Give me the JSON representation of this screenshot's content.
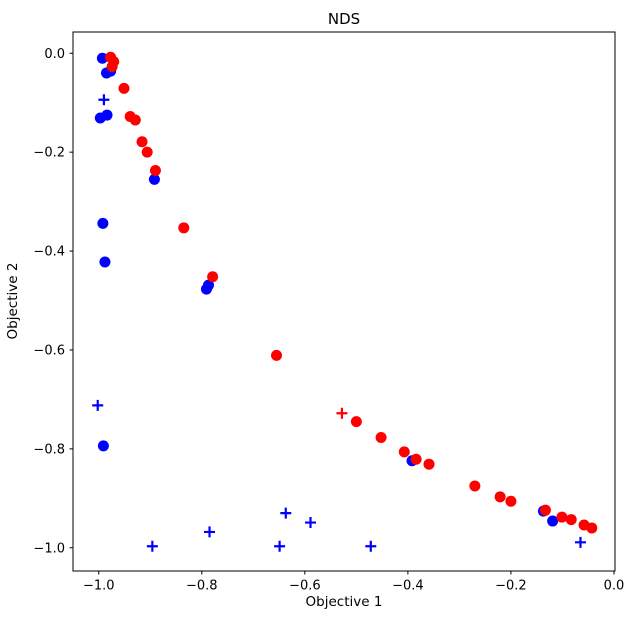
{
  "figure": {
    "title": "NDS",
    "xlabel": "Objective 1",
    "ylabel": "Objective 2"
  },
  "chart_data": {
    "type": "scatter",
    "title": "NDS",
    "xlabel": "Objective 1",
    "ylabel": "Objective 2",
    "xlim": [
      -1.05,
      0.002
    ],
    "ylim": [
      -1.047,
      0.043
    ],
    "xticks": [
      -1.0,
      -0.8,
      -0.6,
      -0.4,
      -0.2,
      0.0
    ],
    "xtick_labels": [
      "−1.0",
      "−0.8",
      "−0.6",
      "−0.4",
      "−0.2",
      "0.0"
    ],
    "yticks": [
      0.0,
      -0.2,
      -0.4,
      -0.6,
      -0.8,
      -1.0
    ],
    "ytick_labels": [
      "0.0",
      "−0.2",
      "−0.4",
      "−0.6",
      "−0.8",
      "−1.0"
    ],
    "grid": false,
    "legend": "none",
    "colors": {
      "red": "#ff0000",
      "blue": "#0000ff"
    },
    "series": [
      {
        "name": "blue-circles",
        "marker": "circle",
        "color": "#0000ff",
        "points": [
          [
            -0.993,
            -0.01
          ],
          [
            -0.985,
            -0.04
          ],
          [
            -0.977,
            -0.036
          ],
          [
            -0.997,
            -0.131
          ],
          [
            -0.984,
            -0.125
          ],
          [
            -0.892,
            -0.255
          ],
          [
            -0.992,
            -0.344
          ],
          [
            -0.988,
            -0.422
          ],
          [
            -0.787,
            -0.469
          ],
          [
            -0.791,
            -0.477
          ],
          [
            -0.991,
            -0.794
          ],
          [
            -0.392,
            -0.824
          ],
          [
            -0.137,
            -0.926
          ],
          [
            -0.119,
            -0.946
          ]
        ]
      },
      {
        "name": "red-circles",
        "marker": "circle",
        "color": "#ff0000",
        "points": [
          [
            -0.977,
            -0.008
          ],
          [
            -0.971,
            -0.017
          ],
          [
            -0.974,
            -0.027
          ],
          [
            -0.951,
            -0.071
          ],
          [
            -0.939,
            -0.128
          ],
          [
            -0.929,
            -0.135
          ],
          [
            -0.916,
            -0.179
          ],
          [
            -0.906,
            -0.2
          ],
          [
            -0.89,
            -0.237
          ],
          [
            -0.835,
            -0.353
          ],
          [
            -0.779,
            -0.452
          ],
          [
            -0.655,
            -0.611
          ],
          [
            -0.5,
            -0.745
          ],
          [
            -0.452,
            -0.777
          ],
          [
            -0.407,
            -0.806
          ],
          [
            -0.384,
            -0.821
          ],
          [
            -0.359,
            -0.831
          ],
          [
            -0.27,
            -0.875
          ],
          [
            -0.221,
            -0.897
          ],
          [
            -0.2,
            -0.906
          ],
          [
            -0.133,
            -0.924
          ],
          [
            -0.101,
            -0.938
          ],
          [
            -0.083,
            -0.943
          ],
          [
            -0.058,
            -0.954
          ],
          [
            -0.043,
            -0.96
          ]
        ]
      },
      {
        "name": "blue-plus-markers",
        "marker": "plus",
        "color": "#0000ff",
        "points": [
          [
            -0.99,
            -0.094
          ],
          [
            -1.002,
            -0.712
          ],
          [
            -0.637,
            -0.93
          ],
          [
            -0.589,
            -0.949
          ],
          [
            -0.785,
            -0.968
          ],
          [
            -0.896,
            -0.997
          ],
          [
            -0.649,
            -0.997
          ],
          [
            -0.472,
            -0.997
          ],
          [
            -0.065,
            -0.989
          ]
        ]
      },
      {
        "name": "red-plus-markers",
        "marker": "plus",
        "color": "#ff0000",
        "points": [
          [
            -0.528,
            -0.728
          ]
        ]
      }
    ]
  }
}
